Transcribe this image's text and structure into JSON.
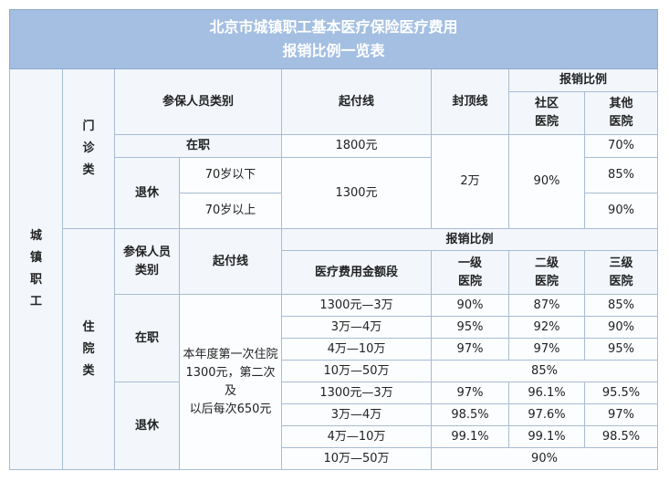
{
  "title": [
    "北京市城镇职工基本医疗保险医疗费用",
    "报销比例一览表"
  ],
  "group": "城镇职工",
  "outpatient": {
    "label": "门诊类",
    "headers": {
      "category": "参保人员类别",
      "deductible": "起付线",
      "cap": "封顶线",
      "ratio": "报销比例",
      "community": "社区医院",
      "other": "其他医院"
    },
    "employed": {
      "label": "在职",
      "deductible": "1800元",
      "other": "70%"
    },
    "retired": {
      "label": "退休",
      "deductible": "1300元",
      "rows": [
        {
          "age": "70岁以下",
          "other": "85%"
        },
        {
          "age": "70岁以上",
          "other": "90%"
        }
      ]
    },
    "cap": "2万",
    "community": "90%"
  },
  "inpatient": {
    "label": "住院类",
    "headers": {
      "category": "参保人员类别",
      "deductible": "起付线",
      "ratio": "报销比例",
      "amount": "医疗费用金额段",
      "level1": "一级医院",
      "level2": "二级医院",
      "level3": "三级医院"
    },
    "deductible": [
      "本年度第一次住院",
      "1300元，第二次及",
      "以后每次650元"
    ],
    "employed": {
      "label": "在职",
      "rows": [
        [
          "1300元—3万",
          "90%",
          "87%",
          "85%"
        ],
        [
          "3万—4万",
          "95%",
          "92%",
          "90%"
        ],
        [
          "4万—10万",
          "97%",
          "97%",
          "95%"
        ],
        [
          "10万—50万",
          "85%"
        ]
      ]
    },
    "retired": {
      "label": "退休",
      "rows": [
        [
          "1300元—3万",
          "97%",
          "96.1%",
          "95.5%"
        ],
        [
          "3万—4万",
          "98.5%",
          "97.6%",
          "97%"
        ],
        [
          "4万—10万",
          "99.1%",
          "99.1%",
          "98.5%"
        ],
        [
          "10万—50万",
          "90%"
        ]
      ]
    }
  }
}
